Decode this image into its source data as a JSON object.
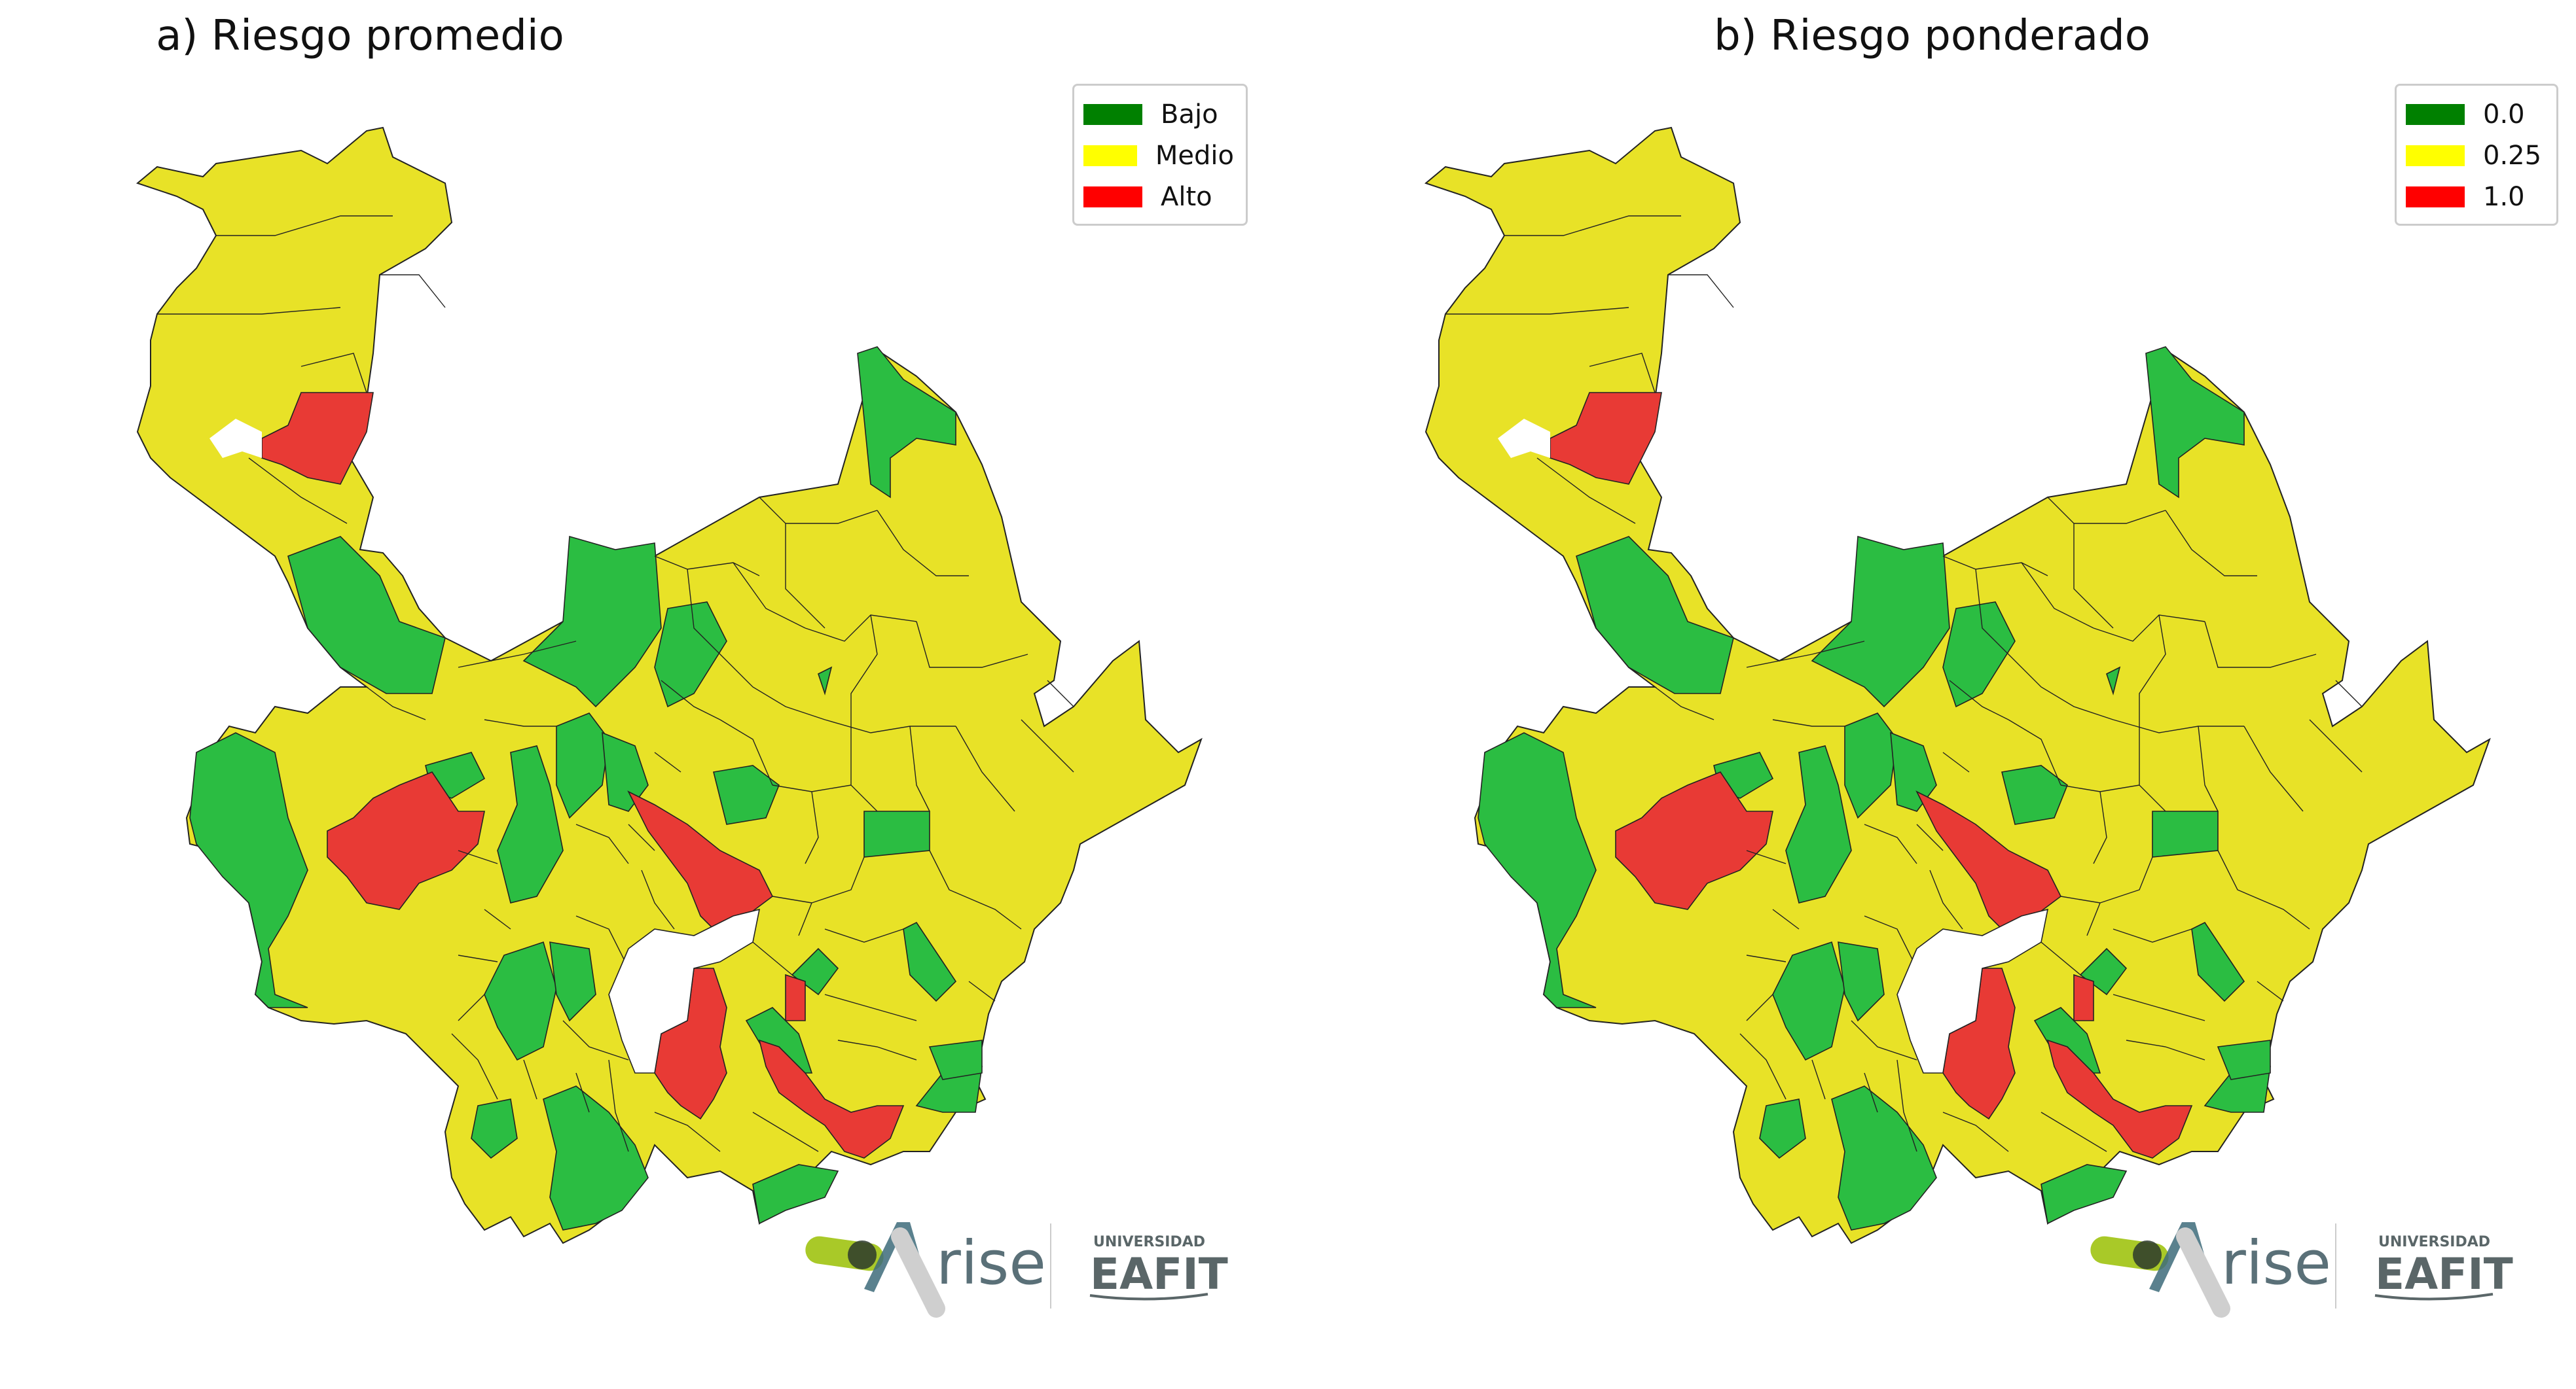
{
  "colors": {
    "low": "#2bbd42",
    "medium": "#e8e227",
    "high": "#e83a35",
    "border": "#222222",
    "legend_low": "#008000",
    "legend_medium": "#ffff00",
    "legend_high": "#ff0000"
  },
  "panels": [
    {
      "title": "a) Riesgo promedio",
      "legend": [
        "Bajo",
        "Medio",
        "Alto"
      ]
    },
    {
      "title": "b) Riesgo ponderado",
      "legend": [
        "0.0",
        "0.25",
        "1.0"
      ]
    }
  ],
  "logos": {
    "rise": "rise",
    "university_line1": "UNIVERSIDAD",
    "university_line2": "EAFIT"
  }
}
